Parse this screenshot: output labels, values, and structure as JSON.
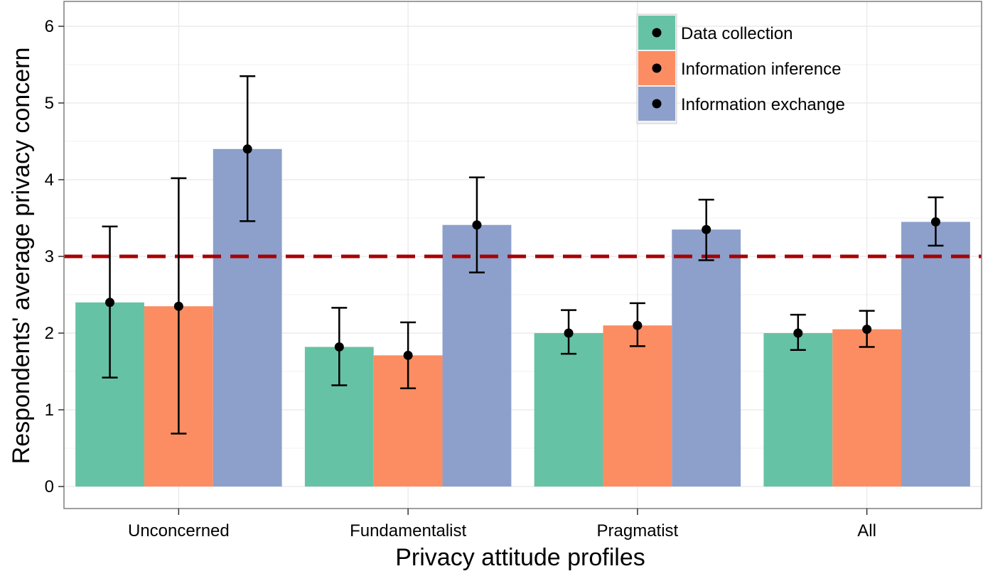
{
  "chart_data": {
    "type": "bar",
    "xlabel": "Privacy attitude profiles",
    "ylabel": "Respondents' average privacy concern",
    "categories": [
      "Unconcerned",
      "Fundamentalist",
      "Pragmatist",
      "All"
    ],
    "ylim": [
      -0.3,
      6.3
    ],
    "yticks": [
      0,
      1,
      2,
      3,
      4,
      5,
      6
    ],
    "grid": true,
    "legend_position": "top-right",
    "reference_line": {
      "y": 3,
      "color": "#a80000",
      "style": "dashed"
    },
    "series": [
      {
        "name": "Data collection",
        "color": "#66c2a5",
        "values": [
          2.4,
          1.82,
          2.0,
          2.0
        ],
        "error_low": [
          1.42,
          1.32,
          1.73,
          1.78
        ],
        "error_high": [
          3.39,
          2.33,
          2.3,
          2.24
        ]
      },
      {
        "name": "Information inference",
        "color": "#fc8d62",
        "values": [
          2.35,
          1.71,
          2.1,
          2.05
        ],
        "error_low": [
          0.69,
          1.28,
          1.83,
          1.82
        ],
        "error_high": [
          4.02,
          2.14,
          2.39,
          2.29
        ]
      },
      {
        "name": "Information exchange",
        "color": "#8da0cb",
        "values": [
          4.4,
          3.41,
          3.35,
          3.45
        ],
        "error_low": [
          3.46,
          2.79,
          2.95,
          3.14
        ],
        "error_high": [
          5.35,
          4.03,
          3.74,
          3.77
        ]
      }
    ]
  }
}
